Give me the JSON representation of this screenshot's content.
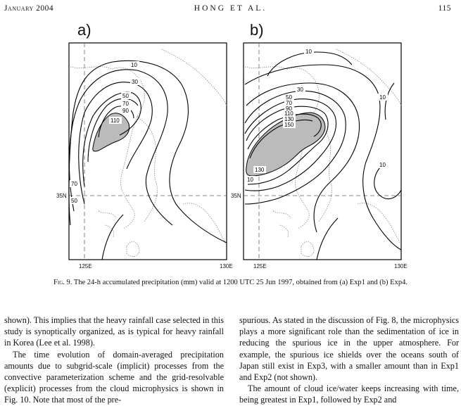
{
  "header": {
    "left": "January 2004",
    "center": "HONG ET AL.",
    "page": "115"
  },
  "panels": [
    {
      "label": "a)",
      "contour_labels": [
        "10",
        "30",
        "50",
        "70",
        "90",
        "110",
        "70",
        "50"
      ],
      "lat_label": "35N",
      "lon_left": "125E",
      "lon_right": "130E"
    },
    {
      "label": "b)",
      "contour_labels": [
        "10",
        "30",
        "50",
        "70",
        "90",
        "110",
        "130",
        "150",
        "130",
        "10",
        "10",
        "10"
      ],
      "lat_label": "35N",
      "lon_left": "125E",
      "lon_right": "130E"
    }
  ],
  "caption": {
    "fig": "Fig. 9.",
    "text": " The 24-h accumulated precipitation (mm) valid at 1200 UTC 25 Jun 1997, obtained from (a) Exp1 and (b) Exp4."
  },
  "body_left": [
    "shown). This implies that the heavy rainfall case selected in this study is synoptically organized, as is typical for heavy rainfall in Korea (Lee et al. 1998).",
    "The time evolution of domain-averaged precipitation amounts due to subgrid-scale (implicit) processes from the convective parameterization scheme and the grid-resolvable (explicit) processes from the cloud microphysics is shown in Fig. 10. Note that most of the pre-"
  ],
  "body_right": [
    "spurious. As stated in the discussion of Fig. 8, the microphysics plays a more significant role than the sedimentation of ice in reducing the spurious ice in the upper atmosphere. For example, the spurious ice shields over the oceans south of Japan still exist in Exp3, with a smaller amount than in Exp1 and Exp2 (not shown).",
    "The amount of cloud ice/water keeps increasing with time, being greatest in Exp1, followed by Exp2 and"
  ]
}
